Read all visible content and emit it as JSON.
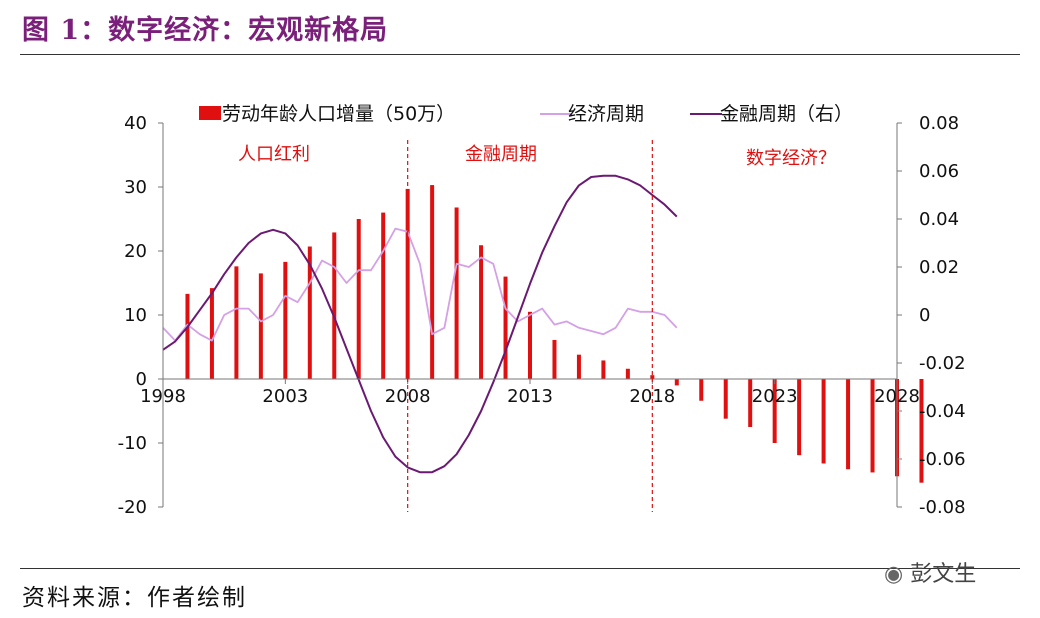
{
  "figure": {
    "title": "图 1：数字经济：宏观新格局",
    "source": "资料来源：作者绘制",
    "watermark": "彭文生"
  },
  "colors": {
    "title": "#7a1f7a",
    "bars": "#e01010",
    "economic_cycle": "#d4a0e6",
    "financial_cycle": "#6a1a72",
    "annotation": "#e01010",
    "divider": "#e01010"
  },
  "chart_data": {
    "type": "bar",
    "title": "",
    "x_ticks": [
      "1998",
      "2003",
      "2008",
      "2013",
      "2018",
      "2023",
      "2028"
    ],
    "xlim": [
      1998,
      2028
    ],
    "ylim_left": [
      -20,
      40
    ],
    "yticks_left": [
      "40",
      "30",
      "20",
      "10",
      "0",
      "-10",
      "-20"
    ],
    "ylim_right": [
      -0.08,
      0.08
    ],
    "yticks_right": [
      "0.08",
      "0.06",
      "0.04",
      "0.02",
      "0",
      "-0.02",
      "-0.04",
      "-0.06",
      "-0.08"
    ],
    "legend": {
      "placement": "top",
      "entries": [
        "劳动年龄人口增量（50万）",
        "经济周期",
        "金融周期（右）"
      ]
    },
    "annotations": [
      "人口红利",
      "金融周期",
      "数字经济？"
    ],
    "dividers_x": [
      2008,
      2018
    ],
    "series": [
      {
        "name": "劳动年龄人口增量（50万）",
        "axis": "left",
        "kind": "bar",
        "x": [
          1999,
          2000,
          2001,
          2002,
          2003,
          2004,
          2005,
          2006,
          2007,
          2008,
          2009,
          2010,
          2011,
          2012,
          2013,
          2014,
          2015,
          2016,
          2017,
          2018,
          2019,
          2020,
          2021,
          2022,
          2023,
          2024,
          2025,
          2026,
          2027,
          2028,
          2029
        ],
        "values": [
          13.3,
          14.2,
          17.6,
          16.5,
          18.3,
          20.7,
          22.9,
          25.0,
          26.0,
          29.7,
          30.3,
          26.8,
          20.9,
          16.0,
          10.5,
          6.1,
          3.8,
          2.9,
          1.6,
          0.6,
          -1.0,
          -3.4,
          -6.2,
          -7.5,
          -10.0,
          -11.9,
          -13.2,
          -14.1,
          -14.6,
          -15.2,
          -16.2
        ]
      },
      {
        "name": "经济周期",
        "axis": "left",
        "kind": "line",
        "x": [
          1998,
          1998.5,
          1999,
          1999.5,
          2000,
          2000.5,
          2001,
          2001.5,
          2002,
          2002.5,
          2003,
          2003.5,
          2004,
          2004.5,
          2005,
          2005.5,
          2006,
          2006.5,
          2007,
          2007.5,
          2008,
          2008.5,
          2009,
          2009.5,
          2010,
          2010.5,
          2011,
          2011.5,
          2012,
          2012.5,
          2013,
          2013.5,
          2014,
          2014.5,
          2015,
          2015.5,
          2016,
          2016.5,
          2017,
          2017.5,
          2018,
          2018.5,
          2019
        ],
        "values": [
          8,
          6,
          8.5,
          7,
          6,
          10,
          11,
          11,
          9,
          10,
          13,
          12,
          15,
          18.5,
          17.5,
          15,
          17,
          17,
          20,
          23.5,
          23,
          18,
          7,
          8,
          18,
          17.5,
          19,
          18,
          11,
          9,
          10,
          11,
          8.5,
          9,
          8,
          7.5,
          7,
          8,
          11,
          10.5,
          10.5,
          10,
          8
        ]
      },
      {
        "name": "金融周期（右）",
        "axis": "right",
        "kind": "line",
        "x": [
          1998,
          1998.5,
          1999,
          1999.5,
          2000,
          2000.5,
          2001,
          2001.5,
          2002,
          2002.5,
          2003,
          2003.5,
          2004,
          2004.5,
          2005,
          2005.5,
          2006,
          2006.5,
          2007,
          2007.5,
          2008,
          2008.5,
          2009,
          2009.5,
          2010,
          2010.5,
          2011,
          2011.5,
          2012,
          2012.5,
          2013,
          2013.5,
          2014,
          2014.5,
          2015,
          2015.5,
          2016,
          2016.5,
          2017,
          2017.5,
          2018,
          2018.5,
          2019
        ],
        "values": [
          -0.0145,
          -0.011,
          -0.005,
          0.002,
          0.009,
          0.017,
          0.024,
          0.03,
          0.034,
          0.0355,
          0.034,
          0.029,
          0.021,
          0.011,
          -0.001,
          -0.014,
          -0.027,
          -0.04,
          -0.051,
          -0.059,
          -0.0635,
          -0.0655,
          -0.0655,
          -0.063,
          -0.058,
          -0.05,
          -0.04,
          -0.028,
          -0.015,
          -0.001,
          0.013,
          0.026,
          0.037,
          0.047,
          0.054,
          0.0575,
          0.058,
          0.058,
          0.0565,
          0.054,
          0.05,
          0.046,
          0.041
        ]
      }
    ]
  }
}
